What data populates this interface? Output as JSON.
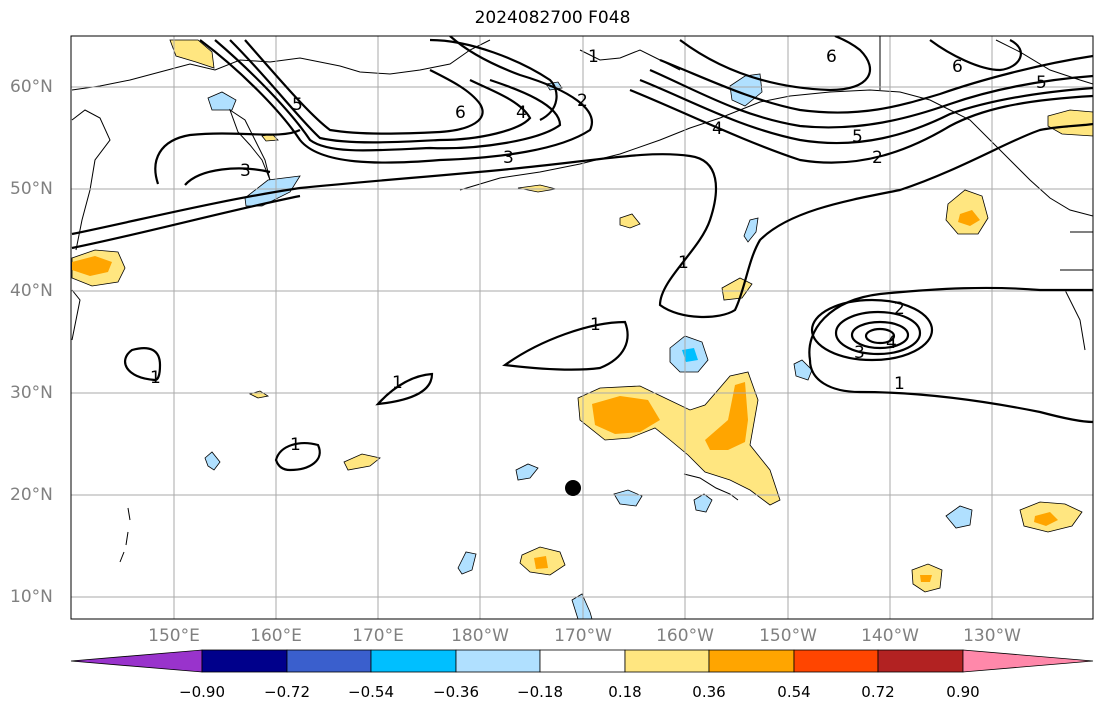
{
  "title": "2024082700 F048",
  "lat_labels": [
    "60°N",
    "50°N",
    "40°N",
    "30°N",
    "20°N",
    "10°N"
  ],
  "lon_labels": [
    "150°E",
    "160°E",
    "170°E",
    "180°W",
    "170°W",
    "160°W",
    "150°W",
    "140°W",
    "130°W"
  ],
  "colorbar": {
    "ticks": [
      "−0.90",
      "−0.72",
      "−0.54",
      "−0.36",
      "−0.18",
      "0.18",
      "0.36",
      "0.54",
      "0.72",
      "0.90"
    ],
    "colors": [
      "#9933cc",
      "#00008b",
      "#3a5fcd",
      "#00bfff",
      "#b0e0ff",
      "#ffffff",
      "#ffe680",
      "#ffa500",
      "#ff4500",
      "#b22222",
      "#ff88aa"
    ]
  },
  "contour_labels": [
    "1",
    "2",
    "3",
    "4",
    "5",
    "6"
  ],
  "marker": "storm-center-dot"
}
